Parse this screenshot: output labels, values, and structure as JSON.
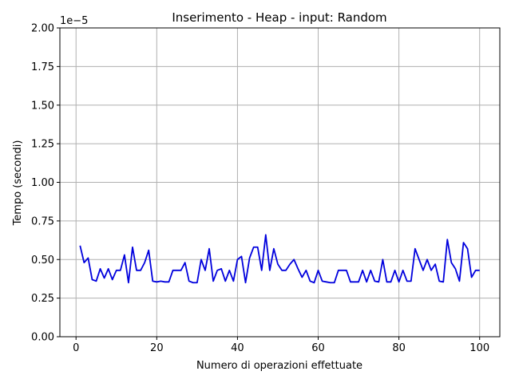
{
  "chart_data": {
    "type": "line",
    "title": "Inserimento - Heap - input: Random",
    "xlabel": "Numero di operazioni effettuate",
    "ylabel": "Tempo (secondi)",
    "offset_label": "1e−5",
    "xlim": [
      -4,
      105
    ],
    "ylim": [
      0,
      2.0
    ],
    "x_ticks": [
      0,
      20,
      40,
      60,
      80,
      100
    ],
    "x_tick_labels": [
      "0",
      "20",
      "40",
      "60",
      "80",
      "100"
    ],
    "y_ticks": [
      0,
      0.25,
      0.5,
      0.75,
      1.0,
      1.25,
      1.5,
      1.75,
      2.0
    ],
    "y_tick_labels": [
      "0.00",
      "0.25",
      "0.50",
      "0.75",
      "1.00",
      "1.25",
      "1.50",
      "1.75",
      "2.00"
    ],
    "grid": true,
    "series": [
      {
        "color": "#0000dd",
        "x": [
          1,
          2,
          3,
          4,
          5,
          6,
          7,
          8,
          9,
          10,
          11,
          12,
          13,
          14,
          15,
          16,
          17,
          18,
          19,
          20,
          21,
          22,
          23,
          24,
          25,
          26,
          27,
          28,
          29,
          30,
          31,
          32,
          33,
          34,
          35,
          36,
          37,
          38,
          39,
          40,
          41,
          42,
          43,
          44,
          45,
          46,
          47,
          48,
          49,
          50,
          51,
          52,
          53,
          54,
          55,
          56,
          57,
          58,
          59,
          60,
          61,
          62,
          63,
          64,
          65,
          66,
          67,
          68,
          69,
          70,
          71,
          72,
          73,
          74,
          75,
          76,
          77,
          78,
          79,
          80,
          81,
          82,
          83,
          84,
          85,
          86,
          87,
          88,
          89,
          90,
          91,
          92,
          93,
          94,
          95,
          96,
          97,
          98,
          99,
          100
        ],
        "y": [
          0.59,
          0.48,
          0.51,
          0.37,
          0.36,
          0.44,
          0.38,
          0.44,
          0.37,
          0.43,
          0.43,
          0.53,
          0.35,
          0.58,
          0.43,
          0.43,
          0.48,
          0.56,
          0.36,
          0.355,
          0.36,
          0.355,
          0.355,
          0.43,
          0.43,
          0.43,
          0.48,
          0.36,
          0.35,
          0.35,
          0.5,
          0.43,
          0.57,
          0.36,
          0.43,
          0.44,
          0.36,
          0.43,
          0.36,
          0.5,
          0.52,
          0.35,
          0.51,
          0.58,
          0.58,
          0.43,
          0.66,
          0.43,
          0.57,
          0.47,
          0.43,
          0.43,
          0.47,
          0.5,
          0.44,
          0.385,
          0.43,
          0.36,
          0.35,
          0.43,
          0.36,
          0.355,
          0.35,
          0.35,
          0.43,
          0.43,
          0.43,
          0.355,
          0.355,
          0.355,
          0.43,
          0.355,
          0.43,
          0.36,
          0.355,
          0.5,
          0.355,
          0.355,
          0.43,
          0.355,
          0.43,
          0.36,
          0.36,
          0.57,
          0.5,
          0.43,
          0.5,
          0.43,
          0.47,
          0.36,
          0.355,
          0.63,
          0.48,
          0.44,
          0.36,
          0.61,
          0.57,
          0.385,
          0.43,
          0.43
        ]
      }
    ]
  }
}
